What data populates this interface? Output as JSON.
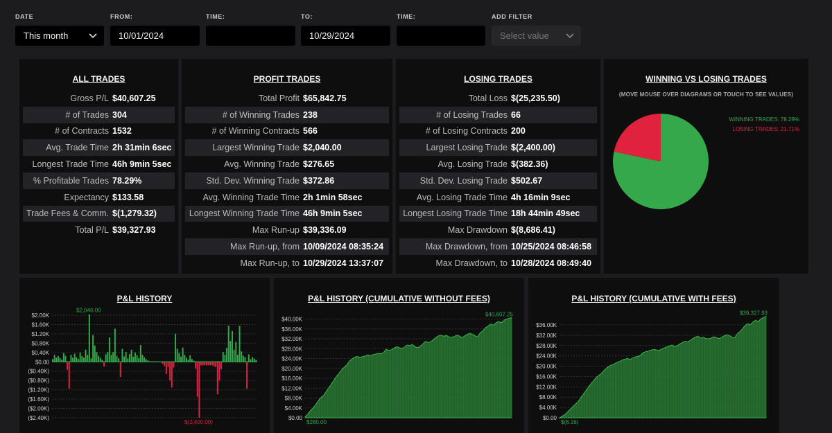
{
  "filters": {
    "date": {
      "label": "DATE",
      "value": "This month"
    },
    "from": {
      "label": "FROM:",
      "value": "10/01/2024"
    },
    "time1": {
      "label": "TIME:",
      "value": ""
    },
    "to": {
      "label": "TO:",
      "value": "10/29/2024"
    },
    "time2": {
      "label": "TIME:",
      "value": ""
    },
    "add_filter": {
      "label": "ADD FILTER",
      "placeholder": "Select value"
    }
  },
  "all_trades": {
    "title": "ALL TRADES",
    "rows": [
      {
        "label": "Gross P/L",
        "value": "$40,607.25"
      },
      {
        "label": "# of Trades",
        "value": "304"
      },
      {
        "label": "# of Contracts",
        "value": "1532"
      },
      {
        "label": "Avg. Trade Time",
        "value": "2h 31min 6sec"
      },
      {
        "label": "Longest Trade Time",
        "value": "46h 9min 5sec"
      },
      {
        "label": "% Profitable Trades",
        "value": "78.29%"
      },
      {
        "label": "Expectancy",
        "value": "$133.58"
      },
      {
        "label": "Trade Fees & Comm.",
        "value": "$(1,279.32)"
      },
      {
        "label": "Total P/L",
        "value": "$39,327.93"
      }
    ]
  },
  "profit_trades": {
    "title": "PROFIT TRADES",
    "rows": [
      {
        "label": "Total Profit",
        "value": "$65,842.75"
      },
      {
        "label": "# of Winning Trades",
        "value": "238"
      },
      {
        "label": "# of Winning Contracts",
        "value": "566"
      },
      {
        "label": "Largest Winning Trade",
        "value": "$2,040.00"
      },
      {
        "label": "Avg. Winning Trade",
        "value": "$276.65"
      },
      {
        "label": "Std. Dev. Winning Trade",
        "value": "$372.86"
      },
      {
        "label": "Avg. Winning Trade Time",
        "value": "2h 1min 58sec"
      },
      {
        "label": "Longest Winning Trade Time",
        "value": "46h 9min 5sec"
      },
      {
        "label": "Max Run-up",
        "value": "$39,336.09"
      },
      {
        "label": "Max Run-up, from",
        "value": "10/09/2024 08:35:24"
      },
      {
        "label": "Max Run-up, to",
        "value": "10/29/2024 13:37:07"
      }
    ]
  },
  "losing_trades": {
    "title": "LOSING TRADES",
    "rows": [
      {
        "label": "Total Loss",
        "value": "$(25,235.50)"
      },
      {
        "label": "# of Losing Trades",
        "value": "66"
      },
      {
        "label": "# of Losing Contracts",
        "value": "200"
      },
      {
        "label": "Largest Losing Trade",
        "value": "$(2,400.00)"
      },
      {
        "label": "Avg. Losing Trade",
        "value": "$(382.36)"
      },
      {
        "label": "Std. Dev. Losing Trade",
        "value": "$502.67"
      },
      {
        "label": "Avg. Losing Trade Time",
        "value": "4h 16min 9sec"
      },
      {
        "label": "Longest Losing Trade Time",
        "value": "18h 44min 49sec"
      },
      {
        "label": "Max Drawdown",
        "value": "$(8,686.41)"
      },
      {
        "label": "Max Drawdown, from",
        "value": "10/25/2024 08:46:58"
      },
      {
        "label": "Max Drawdown, to",
        "value": "10/28/2024 08:49:40"
      }
    ]
  },
  "colors": {
    "win": "#34a84a",
    "loss": "#e0223f",
    "bg": "#0e0e0f"
  },
  "chart_data": [
    {
      "type": "pie",
      "title": "WINNING VS LOSING TRADES",
      "hint": "(MOVE MOUSE OVER DIAGRAMS OR TOUCH TO SEE VALUES)",
      "slices": [
        {
          "name": "WINNING TRADES",
          "value": 78.29,
          "label": "WINNING TRADES: 78.29%",
          "color": "#34a84a"
        },
        {
          "name": "LOSING TRADES",
          "value": 21.71,
          "label": "LOSING TRADES: 21.71%",
          "color": "#e0223f"
        }
      ]
    },
    {
      "type": "bar",
      "title": "P&L HISTORY",
      "ylim": [
        -2400,
        2000
      ],
      "yticks": [
        2000,
        1600,
        1200,
        800,
        400,
        0,
        -400,
        -800,
        -1200,
        -1600,
        -2000,
        -2400
      ],
      "ytick_labels": [
        "$2.00K",
        "$1.60K",
        "$1.20K",
        "$0.80K",
        "$0.40K",
        "$0.00",
        "($0.40K)",
        "($0.80K)",
        "($1.20K)",
        "($1.60K)",
        "($2.00K)",
        "($2.40K)"
      ],
      "max_label": "$2,040.00",
      "min_label": "$(2,400.00)",
      "values": [
        120,
        300,
        180,
        250,
        160,
        90,
        380,
        260,
        -350,
        -1150,
        300,
        180,
        350,
        200,
        120,
        400,
        250,
        180,
        520,
        300,
        2040,
        150,
        1150,
        700,
        420,
        260,
        180,
        90,
        -200,
        320,
        420,
        1050,
        300,
        420,
        1420,
        260,
        150,
        -650,
        560,
        230,
        420,
        150,
        330,
        520,
        220,
        400,
        280,
        160,
        720,
        300,
        200,
        110,
        60,
        30,
        20,
        15,
        0,
        0,
        0,
        0,
        -80,
        -180,
        -520,
        -220,
        -800,
        -1100,
        -250,
        1200,
        560,
        380,
        220,
        610,
        300,
        180,
        90,
        280,
        120,
        50,
        -300,
        -1500,
        -2400,
        -150,
        -150,
        -150,
        -150,
        -150,
        -150,
        -150,
        -200,
        -220,
        -1400,
        -800,
        -320,
        420,
        300,
        600,
        1550,
        900,
        1320,
        520,
        850,
        300,
        1550,
        450,
        260,
        200,
        -1150,
        320,
        110,
        200,
        140,
        80
      ]
    },
    {
      "type": "area",
      "title": "P&L HISTORY (CUMULATIVE WITHOUT FEES)",
      "ylim": [
        0,
        41000
      ],
      "yticks": [
        0,
        4000,
        8000,
        12000,
        16000,
        20000,
        24000,
        28000,
        32000,
        36000,
        40000
      ],
      "ytick_labels": [
        "$0.00",
        "$4.00K",
        "$8.00K",
        "$12.00K",
        "$16.00K",
        "$20.00K",
        "$24.00K",
        "$28.00K",
        "$32.00K",
        "$36.00K",
        "$40.00K"
      ],
      "first_label": "$280.00",
      "last_label": "$40,607.25",
      "values": [
        280,
        1500,
        2800,
        3900,
        5200,
        6800,
        8200,
        9000,
        10500,
        12000,
        13500,
        15200,
        16800,
        18000,
        19500,
        20500,
        21500,
        23000,
        23800,
        24600,
        24800,
        24500,
        24800,
        25000,
        25500,
        25200,
        25600,
        25800,
        26100,
        25900,
        26400,
        27800,
        27200,
        27500,
        28200,
        28800,
        28400,
        28100,
        28600,
        29500,
        29200,
        29700,
        28800,
        28400,
        29000,
        29800,
        31000,
        30500,
        30800,
        31500,
        32500,
        33200,
        33600,
        33000,
        33400,
        32800,
        32600,
        32900,
        33500,
        33100,
        32500,
        33100,
        33800,
        34200,
        33900,
        33200,
        32800,
        34500,
        35200,
        36500,
        37200,
        38000,
        37500,
        38500,
        39000,
        38500,
        39500,
        40000,
        40300,
        40607.25
      ]
    },
    {
      "type": "area",
      "title": "P&L HISTORY (CUMULATIVE WITH FEES)",
      "ylim": [
        0,
        39500
      ],
      "yticks": [
        0,
        4000,
        8000,
        12000,
        16000,
        20000,
        24000,
        28000,
        32000,
        36000
      ],
      "ytick_labels": [
        "$0.00",
        "$4.00K",
        "$8.00K",
        "$12.00K",
        "$16.00K",
        "$20.00K",
        "$24.00K",
        "$28.00K",
        "$32.00K",
        "$36.00K"
      ],
      "first_label": "$(8.16)",
      "last_label": "$39,327.93",
      "values": [
        -8.16,
        600,
        1200,
        2200,
        3200,
        4200,
        5200,
        6100,
        7600,
        9000,
        10400,
        11800,
        13200,
        14300,
        15600,
        16400,
        17200,
        18300,
        19300,
        20000,
        20500,
        20900,
        21500,
        21800,
        22400,
        22700,
        23000,
        22600,
        23200,
        23600,
        23800,
        24200,
        25300,
        25600,
        25900,
        26200,
        26500,
        26300,
        26100,
        26600,
        27000,
        27500,
        27800,
        28200,
        27600,
        27900,
        28600,
        29200,
        29700,
        29400,
        30000,
        30700,
        31300,
        31600,
        30900,
        31200,
        30700,
        30600,
        30900,
        31400,
        31100,
        30700,
        31200,
        31800,
        32200,
        31900,
        31200,
        31000,
        32600,
        33400,
        34600,
        35800,
        36500,
        36100,
        37200,
        37800,
        37300,
        38400,
        38900,
        39327.93
      ]
    }
  ]
}
